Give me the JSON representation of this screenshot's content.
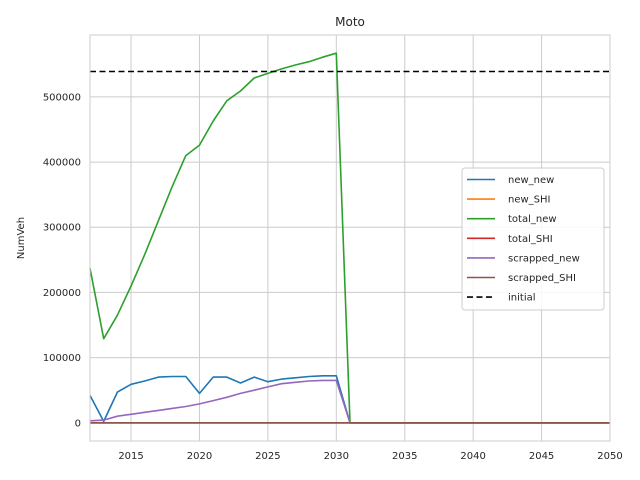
{
  "chart_data": {
    "type": "line",
    "title": "Moto",
    "xlabel": "",
    "ylabel": "NumVeh",
    "xlim": [
      2012,
      2050
    ],
    "ylim": [
      -28000,
      595000
    ],
    "xticks": [
      2015,
      2020,
      2025,
      2030,
      2035,
      2040,
      2045,
      2050
    ],
    "yticks": [
      0,
      100000,
      200000,
      300000,
      400000,
      500000
    ],
    "grid": true,
    "legend_position": "center-right",
    "series": [
      {
        "name": "new_new",
        "color": "#1f77b4",
        "style": "solid",
        "x": [
          2012,
          2013,
          2014,
          2015,
          2016,
          2017,
          2018,
          2019,
          2020,
          2021,
          2022,
          2023,
          2024,
          2025,
          2026,
          2027,
          2028,
          2029,
          2030,
          2031,
          2050
        ],
        "y": [
          42000,
          2000,
          47000,
          59000,
          64000,
          70000,
          71000,
          71000,
          45000,
          70000,
          70000,
          61000,
          70000,
          63000,
          67000,
          69000,
          71000,
          72000,
          72000,
          0,
          0
        ]
      },
      {
        "name": "new_SHI",
        "color": "#ff7f0e",
        "style": "solid",
        "x": [
          2012,
          2050
        ],
        "y": [
          0,
          0
        ]
      },
      {
        "name": "total_new",
        "color": "#2ca02c",
        "style": "solid",
        "x": [
          2012,
          2013,
          2014,
          2015,
          2016,
          2017,
          2018,
          2019,
          2020,
          2021,
          2022,
          2023,
          2024,
          2025,
          2026,
          2027,
          2028,
          2029,
          2030,
          2031,
          2050
        ],
        "y": [
          237000,
          129000,
          165000,
          210000,
          258000,
          310000,
          362000,
          410000,
          426000,
          463000,
          494000,
          509000,
          529000,
          536000,
          543000,
          549000,
          554000,
          561000,
          567000,
          0,
          0
        ]
      },
      {
        "name": "total_SHI",
        "color": "#d62728",
        "style": "solid",
        "x": [
          2012,
          2050
        ],
        "y": [
          0,
          0
        ]
      },
      {
        "name": "scrapped_new",
        "color": "#9467bd",
        "style": "solid",
        "x": [
          2012,
          2013,
          2014,
          2015,
          2016,
          2017,
          2018,
          2019,
          2020,
          2021,
          2022,
          2023,
          2024,
          2025,
          2026,
          2027,
          2028,
          2029,
          2030,
          2031,
          2050
        ],
        "y": [
          3000,
          4000,
          10000,
          13000,
          16000,
          19000,
          22000,
          25000,
          29000,
          34000,
          39000,
          45000,
          50000,
          55000,
          60000,
          62000,
          64000,
          65000,
          65000,
          0,
          0
        ]
      },
      {
        "name": "scrapped_SHI",
        "color": "#8c564b",
        "style": "solid",
        "x": [
          2012,
          2050
        ],
        "y": [
          0,
          0
        ]
      },
      {
        "name": "initial",
        "color": "#000000",
        "style": "dashed",
        "x": [
          2012,
          2050
        ],
        "y": [
          539000,
          539000
        ]
      }
    ]
  }
}
